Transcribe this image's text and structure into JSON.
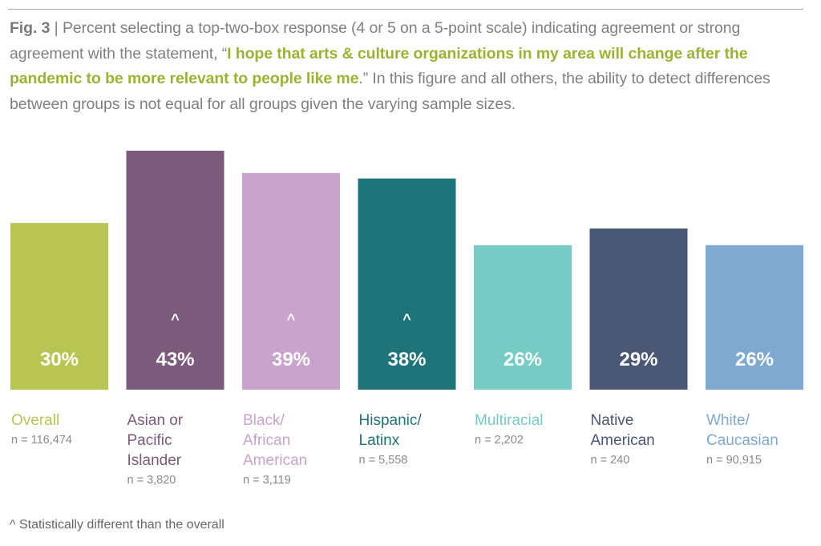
{
  "caption": {
    "fig_label": "Fig. 3",
    "separator": " | ",
    "text_before": "Percent selecting a top-two-box response (4 or 5 on a 5-point scale) indicating agreement or strong agreement with the statement, “",
    "quote": "I hope that arts & culture organizations in my area will change after the pandemic to be more relevant to people like me",
    "text_after": ".” In this figure and all others, the ability to detect differences between groups is not equal for all groups given the varying sample sizes."
  },
  "footnote": "^ Statistically different than the overall",
  "chart_data": {
    "type": "bar",
    "categories": [
      "Overall",
      "Asian or Pacific Islander",
      "Black/ African American",
      "Hispanic/ Latinx",
      "Multiracial",
      "Native American",
      "White/ Caucasian"
    ],
    "category_lines": [
      [
        "Overall"
      ],
      [
        "Asian or",
        "Pacific",
        "Islander"
      ],
      [
        "Black/",
        "African",
        "American"
      ],
      [
        "Hispanic/",
        "Latinx"
      ],
      [
        "Multiracial"
      ],
      [
        "Native",
        "American"
      ],
      [
        "White/",
        "Caucasian"
      ]
    ],
    "values": [
      30,
      43,
      39,
      38,
      26,
      29,
      26
    ],
    "data_labels": [
      "30%",
      "43%",
      "39%",
      "38%",
      "26%",
      "29%",
      "26%"
    ],
    "sample_sizes": [
      "n = 116,474",
      "n = 3,820",
      "n = 3,119",
      "n = 5,558",
      "n = 2,202",
      "n = 240",
      "n = 90,915"
    ],
    "significant_marker": "^",
    "significant": [
      false,
      true,
      true,
      true,
      false,
      false,
      false
    ],
    "colors": [
      "#b8c552",
      "#7b5a7c",
      "#c9a3cb",
      "#1f7479",
      "#76cbc5",
      "#4a5775",
      "#7fa9cf"
    ],
    "ylim": [
      0,
      45
    ],
    "grid": false,
    "legend": "none"
  }
}
